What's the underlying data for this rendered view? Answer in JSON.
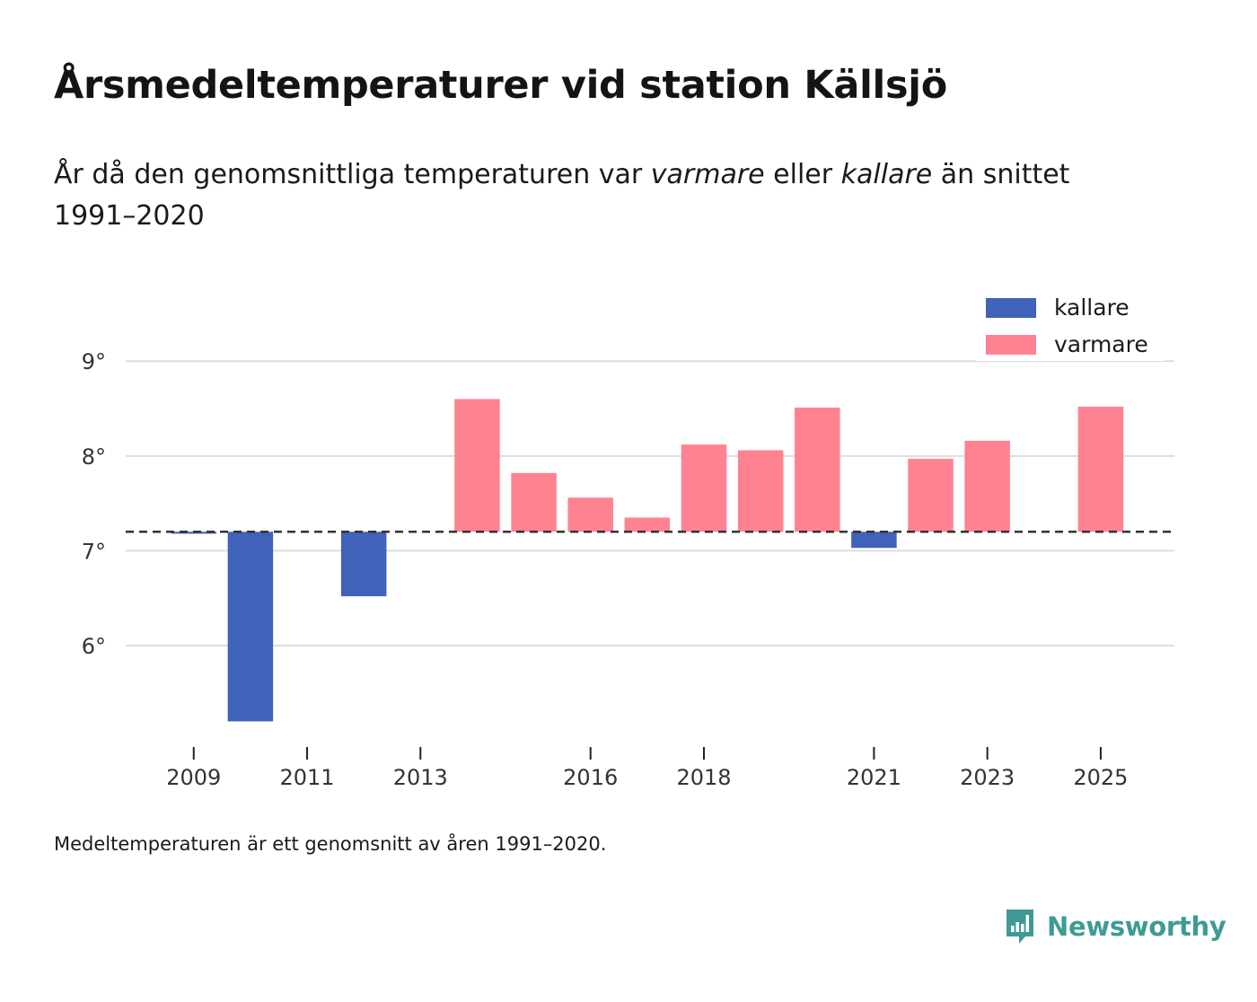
{
  "title": "Årsmedeltemperaturer vid station Källsjö",
  "subtitle": {
    "part1": "År då den genomsnittliga temperaturen var ",
    "em1": "varmare",
    "part2": " eller ",
    "em2": "kallare",
    "part3": " än snittet 1991–2020"
  },
  "footnote": "Medeltemperaturen är ett genomsnitt av åren 1991–2020.",
  "brand": {
    "name": "Newsworthy",
    "icon": "newsworthy-logo-icon",
    "color": "#3f9a96"
  },
  "colors": {
    "colder": "#4062bb",
    "warmer": "#ff8291",
    "baseline": "#333333",
    "grid": "#dddddd"
  },
  "chart_data": {
    "type": "bar",
    "title": "Årsmedeltemperaturer vid station Källsjö",
    "baseline": 7.2,
    "baseline_style": "dashed",
    "ylim": [
      5.1,
      9.4
    ],
    "yticks": [
      6,
      7,
      8,
      9
    ],
    "ytick_labels": [
      "6°",
      "7°",
      "8°",
      "9°"
    ],
    "xlim": [
      2007.8,
      2026.3
    ],
    "xticks": [
      2009,
      2011,
      2013,
      2016,
      2018,
      2021,
      2023,
      2025
    ],
    "xtick_labels": [
      "2009",
      "2011",
      "2013",
      "2016",
      "2018",
      "2021",
      "2023",
      "2025"
    ],
    "grid": true,
    "legend": {
      "position": "top-right",
      "entries": [
        {
          "label": "kallare",
          "color": "#4062bb"
        },
        {
          "label": "varmare",
          "color": "#ff8291"
        }
      ]
    },
    "series": [
      {
        "name": "kallare",
        "points": [
          {
            "year": 2009,
            "value": 7.18
          },
          {
            "year": 2010,
            "value": 5.2
          },
          {
            "year": 2012,
            "value": 6.52
          },
          {
            "year": 2021,
            "value": 7.03
          }
        ]
      },
      {
        "name": "varmare",
        "points": [
          {
            "year": 2014,
            "value": 8.6
          },
          {
            "year": 2015,
            "value": 7.82
          },
          {
            "year": 2016,
            "value": 7.56
          },
          {
            "year": 2017,
            "value": 7.35
          },
          {
            "year": 2018,
            "value": 8.12
          },
          {
            "year": 2019,
            "value": 8.06
          },
          {
            "year": 2020,
            "value": 8.51
          },
          {
            "year": 2022,
            "value": 7.97
          },
          {
            "year": 2023,
            "value": 8.16
          },
          {
            "year": 2025,
            "value": 8.52
          }
        ]
      }
    ]
  }
}
